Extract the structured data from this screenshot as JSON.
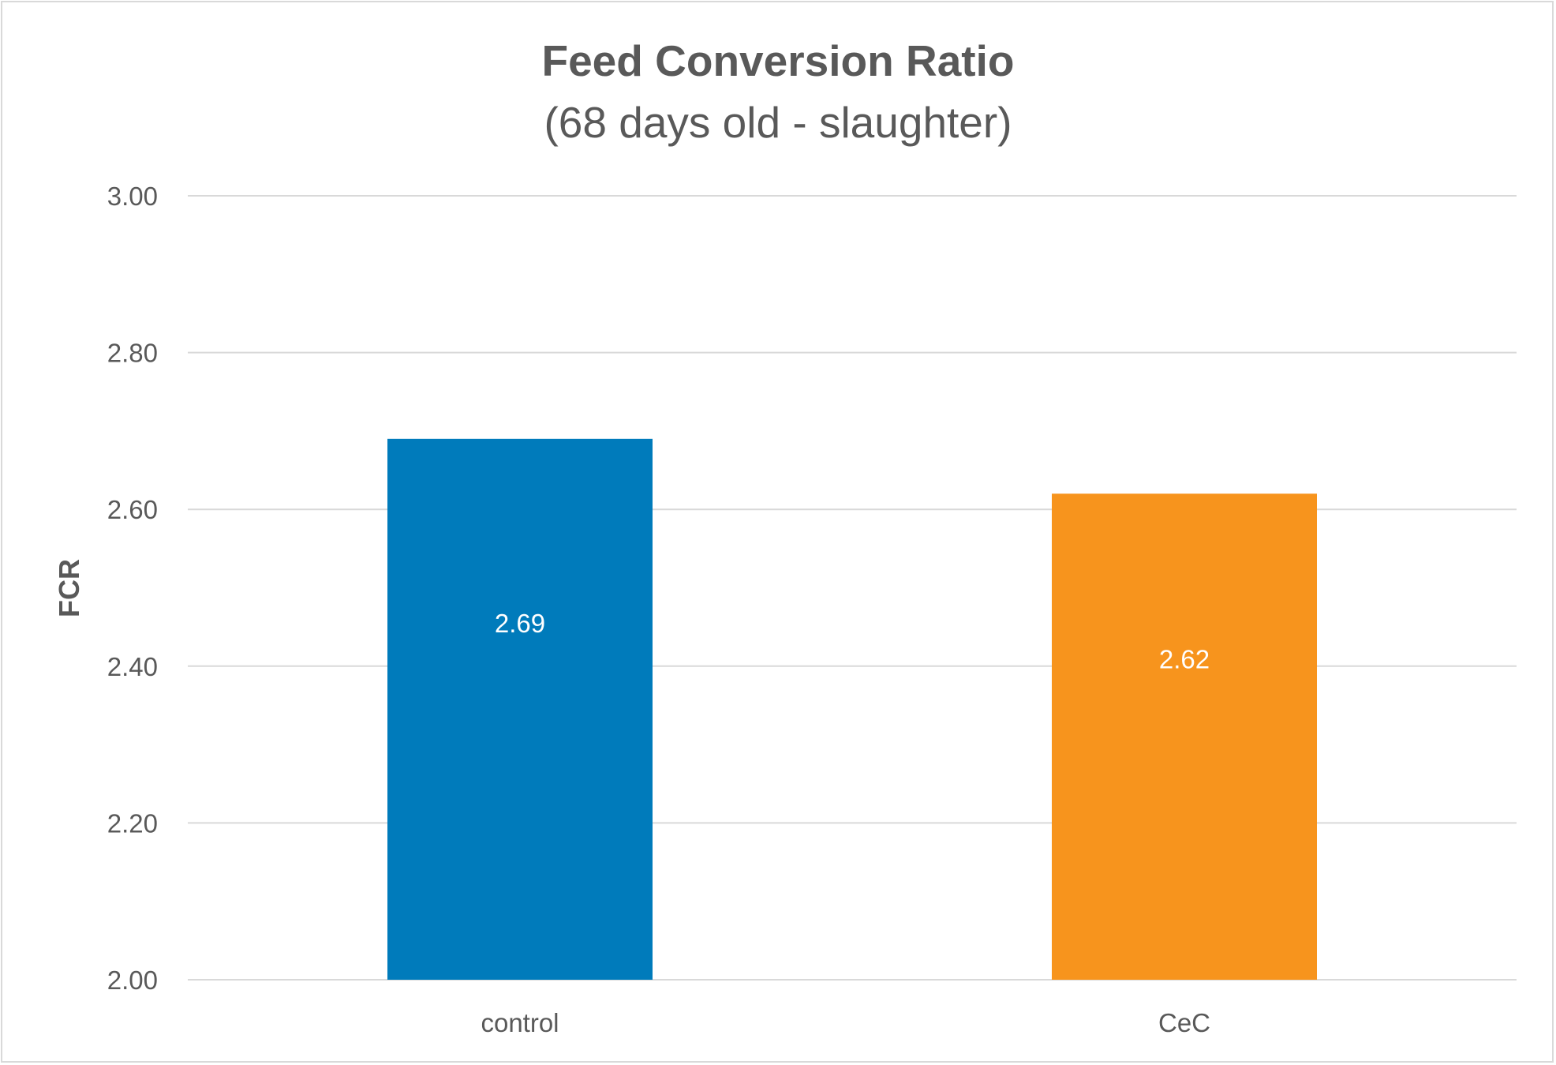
{
  "chart_data": {
    "type": "bar",
    "title": "Feed Conversion Ratio",
    "subtitle": "(68 days old - slaughter)",
    "xlabel": "",
    "ylabel": "FCR",
    "categories": [
      "control",
      "CeC"
    ],
    "values": [
      2.69,
      2.62
    ],
    "data_labels": [
      "2.69",
      "2.62"
    ],
    "colors": [
      "#007BBB",
      "#F7941D"
    ],
    "ylim": [
      2.0,
      3.0
    ],
    "yticks": [
      2.0,
      2.2,
      2.4,
      2.6,
      2.8,
      3.0
    ],
    "ytick_labels": [
      "2.00",
      "2.20",
      "2.40",
      "2.60",
      "2.80",
      "3.00"
    ],
    "grid": true,
    "legend": "none"
  }
}
